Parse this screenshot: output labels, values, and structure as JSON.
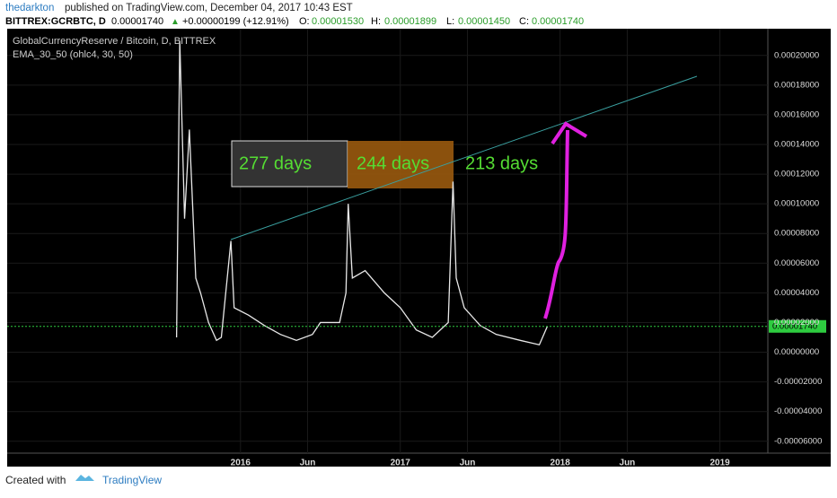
{
  "header": {
    "author": "thedarkton",
    "published": "published on TradingView.com, December 04, 2017 10:43 EST",
    "symbol": "BITTREX:GCRBTC, D",
    "last": "0.00001740",
    "arrow": "▲",
    "change": "+0.00000199 (+12.91%)",
    "o_label": "O:",
    "open": "0.00001530",
    "h_label": "H:",
    "high": "0.00001899",
    "l_label": "L:",
    "low": "0.00001450",
    "c_label": "C:",
    "close": "0.00001740"
  },
  "footer": {
    "created": "Created with",
    "brand": "TradingView"
  },
  "chart_data": {
    "type": "line",
    "title": "GlobalCurrencyReserve / Bitcoin, D, BITTREX",
    "subtitle": "EMA_30_50 (ohlc4, 30, 50)",
    "color": "#e8e8e8",
    "x": [
      2015.6,
      2015.62,
      2015.65,
      2015.68,
      2015.72,
      2015.75,
      2015.8,
      2015.85,
      2015.88,
      2015.94,
      2015.96,
      2016.05,
      2016.15,
      2016.25,
      2016.35,
      2016.45,
      2016.5,
      2016.62,
      2016.66,
      2016.674,
      2016.7,
      2016.78,
      2016.9,
      2017.0,
      2017.1,
      2017.2,
      2017.3,
      2017.33,
      2017.35,
      2017.4,
      2017.5,
      2017.6,
      2017.75,
      2017.87,
      2017.92
    ],
    "values": [
      1e-05,
      0.00021,
      9e-05,
      0.00015,
      5e-05,
      4e-05,
      2e-05,
      8e-06,
      1e-05,
      7.5e-05,
      3e-05,
      2.5e-05,
      1.8e-05,
      1.2e-05,
      8e-06,
      1.2e-05,
      2e-05,
      2e-05,
      4e-05,
      0.0001,
      5e-05,
      5.5e-05,
      4e-05,
      3e-05,
      1.5e-05,
      1e-05,
      2e-05,
      0.000115,
      5e-05,
      3e-05,
      1.8e-05,
      1.2e-05,
      8e-06,
      5e-06,
      1.74e-05
    ],
    "last_value": 1.74e-05,
    "xlim": [
      2014.54,
      2019.3
    ],
    "xticks": [
      {
        "value": 2016,
        "label": "2016"
      },
      {
        "value": 2016.42,
        "label": "Jun"
      },
      {
        "value": 2017,
        "label": "2017"
      },
      {
        "value": 2017.42,
        "label": "Jun"
      },
      {
        "value": 2018,
        "label": "2018"
      },
      {
        "value": 2018.42,
        "label": "Jun"
      },
      {
        "value": 2019,
        "label": "2019"
      }
    ],
    "ylim": [
      -6.8e-05,
      0.000218
    ],
    "yticks": [
      {
        "value": 0.0002,
        "label": "0.00020000"
      },
      {
        "value": 0.00018,
        "label": "0.00018000"
      },
      {
        "value": 0.00016,
        "label": "0.00016000"
      },
      {
        "value": 0.00014,
        "label": "0.00014000"
      },
      {
        "value": 0.00012,
        "label": "0.00012000"
      },
      {
        "value": 0.0001,
        "label": "0.00010000"
      },
      {
        "value": 8e-05,
        "label": "0.00008000"
      },
      {
        "value": 6e-05,
        "label": "0.00006000"
      },
      {
        "value": 4e-05,
        "label": "0.00004000"
      },
      {
        "value": 2e-05,
        "label": "0.00002000"
      },
      {
        "value": 0,
        "label": "0.00000000"
      },
      {
        "value": -2e-05,
        "label": "-0.00002000"
      },
      {
        "value": -4e-05,
        "label": "-0.00004000"
      },
      {
        "value": -6e-05,
        "label": "-0.00006000"
      }
    ],
    "grid": true,
    "annotations": [
      "277 days",
      "244 days",
      "213 days"
    ]
  }
}
